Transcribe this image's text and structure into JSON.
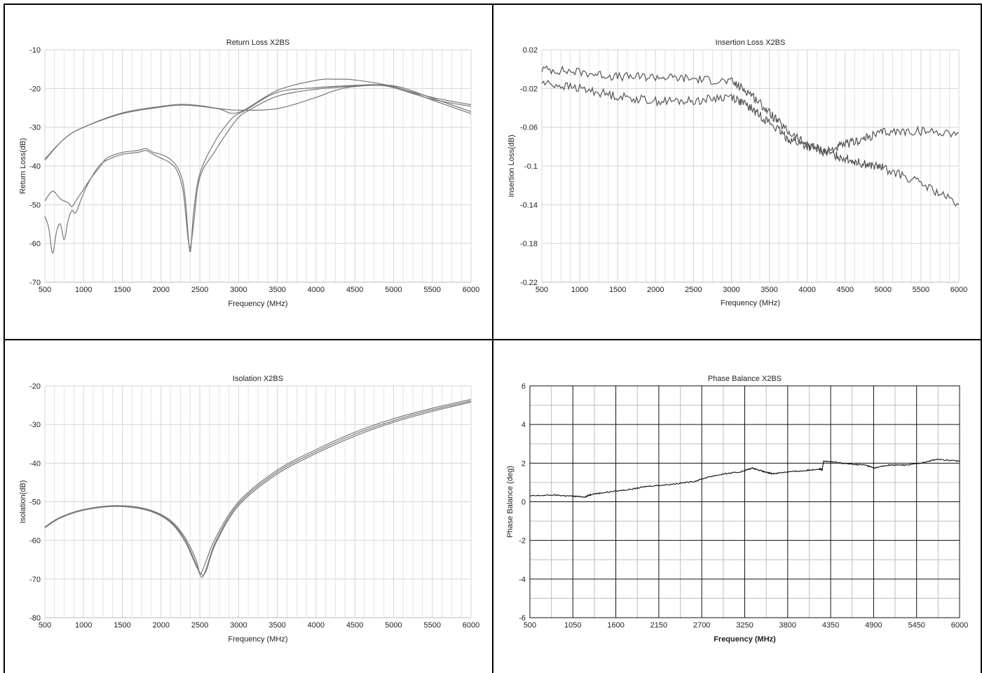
{
  "chart_data": [
    {
      "type": "line",
      "title": "Return Loss X2BS",
      "xlabel": "Frequency (MHz)",
      "ylabel": "Return Loss(dB)",
      "xlim": [
        500,
        6000
      ],
      "ylim": [
        -70,
        -10
      ],
      "x_ticks": [
        500,
        1000,
        1500,
        2000,
        2500,
        3000,
        3500,
        4000,
        4500,
        5000,
        5500,
        6000
      ],
      "y_ticks": [
        -10,
        -20,
        -30,
        -40,
        -50,
        -60,
        -70
      ],
      "grid": true,
      "line_color": "#777777",
      "series": [
        {
          "x": [
            500,
            750,
            1000,
            1500,
            2000,
            2250,
            2500,
            2750,
            3000,
            3500,
            4000,
            4250,
            4500,
            5000,
            5500,
            6000
          ],
          "y": [
            -38.5,
            -33,
            -30,
            -26.5,
            -24.8,
            -24.3,
            -24.6,
            -25.3,
            -26.2,
            -20.5,
            -17.9,
            -17.6,
            -17.8,
            -19.5,
            -23,
            -26.5
          ]
        },
        {
          "x": [
            500,
            750,
            1000,
            1500,
            2000,
            2250,
            2500,
            2750,
            3000,
            3500,
            4000,
            4250,
            4500,
            5000,
            5500,
            6000
          ],
          "y": [
            -38.2,
            -33,
            -30,
            -26.3,
            -24.6,
            -24.1,
            -24.4,
            -25.2,
            -25.6,
            -25.2,
            -22.3,
            -20.5,
            -19.5,
            -19.3,
            -22.5,
            -26
          ]
        },
        {
          "x": [
            500,
            600,
            700,
            800,
            850,
            900,
            1000,
            1100,
            1200,
            1300,
            1500,
            1700,
            1800,
            1900,
            2000,
            2100,
            2200,
            2280,
            2320,
            2350,
            2380,
            2420,
            2500,
            2700,
            2900,
            3000,
            3100,
            3500,
            4000,
            4500,
            4800,
            5000,
            5500,
            6000
          ],
          "y": [
            -49,
            -46.5,
            -48.5,
            -49.5,
            -50.5,
            -49,
            -46,
            -43,
            -40.5,
            -38,
            -36.5,
            -36,
            -35.5,
            -36.5,
            -37,
            -38,
            -40,
            -44,
            -50,
            -58,
            -62,
            -52,
            -42,
            -33.5,
            -28,
            -26.5,
            -25.5,
            -21,
            -19.8,
            -19.2,
            -19,
            -19.6,
            -22.3,
            -24.2
          ]
        },
        {
          "x": [
            500,
            550,
            600,
            650,
            700,
            750,
            800,
            850,
            900,
            1000,
            1100,
            1200,
            1300,
            1500,
            1700,
            1800,
            1900,
            2000,
            2100,
            2200,
            2280,
            2320,
            2350,
            2380,
            2420,
            2500,
            2700,
            2900,
            3000,
            3100,
            3500,
            4000,
            4500,
            4800,
            5000,
            5500,
            6000
          ],
          "y": [
            -53,
            -56,
            -62.5,
            -57,
            -55,
            -59,
            -54,
            -51.5,
            -52,
            -47,
            -43,
            -40,
            -38.5,
            -37,
            -36.5,
            -36,
            -37,
            -38,
            -39,
            -41,
            -46,
            -53,
            -59,
            -61,
            -55,
            -43,
            -36,
            -30,
            -27.5,
            -26,
            -22,
            -20.2,
            -19.4,
            -19.2,
            -19.8,
            -22.8,
            -24.6
          ]
        }
      ]
    },
    {
      "type": "line",
      "title": "Insertion Loss X2BS",
      "xlabel": "Frequency (MHz)",
      "ylabel": "Insertion Loss(dB)",
      "xlim": [
        500,
        6000
      ],
      "ylim": [
        -0.22,
        0.02
      ],
      "x_ticks": [
        500,
        1000,
        1500,
        2000,
        2500,
        3000,
        3500,
        4000,
        4500,
        5000,
        5500,
        6000
      ],
      "y_ticks": [
        0.02,
        -0.02,
        -0.06,
        -0.1,
        -0.14,
        -0.18,
        -0.22
      ],
      "grid": true,
      "line_color": "#555555",
      "series": [
        {
          "x": [
            500,
            1000,
            1500,
            2000,
            2500,
            3000,
            3250,
            3500,
            3750,
            4000,
            4250,
            4500,
            4750,
            5000,
            5500,
            6000
          ],
          "y": [
            0.0,
            -0.003,
            -0.008,
            -0.008,
            -0.01,
            -0.013,
            -0.025,
            -0.045,
            -0.065,
            -0.078,
            -0.085,
            -0.078,
            -0.072,
            -0.065,
            -0.064,
            -0.066
          ]
        },
        {
          "x": [
            500,
            1000,
            1500,
            2000,
            2500,
            3000,
            3250,
            3500,
            3750,
            4000,
            4250,
            4500,
            4750,
            5000,
            5500,
            6000
          ],
          "y": [
            -0.014,
            -0.02,
            -0.028,
            -0.033,
            -0.033,
            -0.028,
            -0.04,
            -0.055,
            -0.072,
            -0.08,
            -0.086,
            -0.092,
            -0.098,
            -0.102,
            -0.118,
            -0.14
          ]
        }
      ]
    },
    {
      "type": "line",
      "title": "Isolation X2BS",
      "xlabel": "Frequency (MHz)",
      "ylabel": "Isolation(dB)",
      "xlim": [
        500,
        6000
      ],
      "ylim": [
        -80,
        -20
      ],
      "x_ticks": [
        500,
        1000,
        1500,
        2000,
        2500,
        3000,
        3500,
        4000,
        4500,
        5000,
        5500,
        6000
      ],
      "y_ticks": [
        -20,
        -30,
        -40,
        -50,
        -60,
        -70,
        -80
      ],
      "grid": true,
      "line_color": "#777777",
      "series": [
        {
          "x": [
            500,
            700,
            1000,
            1400,
            1800,
            2100,
            2300,
            2450,
            2500,
            2550,
            2700,
            3000,
            3500,
            4000,
            4500,
            5000,
            5500,
            6000
          ],
          "y": [
            -56.5,
            -54,
            -52,
            -51,
            -51.8,
            -54.5,
            -59,
            -65,
            -68.5,
            -67,
            -59.5,
            -50,
            -41.8,
            -36.5,
            -32,
            -28.5,
            -25.8,
            -23.5
          ]
        },
        {
          "x": [
            500,
            700,
            1000,
            1400,
            1800,
            2100,
            2300,
            2450,
            2520,
            2580,
            2700,
            3000,
            3500,
            4000,
            4500,
            5000,
            5500,
            6000
          ],
          "y": [
            -56.6,
            -54.1,
            -52.1,
            -51.1,
            -52,
            -54.8,
            -59.5,
            -66,
            -69.5,
            -67.5,
            -60.5,
            -50.5,
            -42.3,
            -37,
            -32.5,
            -29,
            -26.2,
            -23.9
          ]
        },
        {
          "x": [
            500,
            700,
            1000,
            1400,
            1800,
            2100,
            2300,
            2450,
            2520,
            2580,
            2700,
            3000,
            3500,
            4000,
            4500,
            5000,
            5500,
            6000
          ],
          "y": [
            -56.7,
            -54.2,
            -52.2,
            -51.2,
            -52.1,
            -55,
            -60,
            -66.5,
            -68.8,
            -68,
            -61,
            -51,
            -42.8,
            -37.5,
            -33,
            -29.4,
            -26.6,
            -24.2
          ]
        }
      ]
    },
    {
      "type": "line",
      "title": "Phase Balance X2BS",
      "xlabel": "Frequency (MHz)",
      "ylabel": "Phase Balance (deg)",
      "xlim": [
        500,
        6000
      ],
      "ylim": [
        -6,
        6
      ],
      "x_ticks": [
        500,
        1050,
        1600,
        2150,
        2700,
        3250,
        3800,
        4350,
        4900,
        5450,
        6000
      ],
      "y_ticks": [
        6,
        4,
        2,
        0,
        -2,
        -4,
        -6
      ],
      "grid": true,
      "line_color": "#111111",
      "series": [
        {
          "x": [
            500,
            800,
            1000,
            1200,
            1300,
            1500,
            1800,
            2000,
            2300,
            2600,
            2800,
            3000,
            3200,
            3350,
            3500,
            3600,
            3800,
            4000,
            4200,
            4240,
            4260,
            4400,
            4600,
            4800,
            4900,
            5100,
            5300,
            5500,
            5700,
            6000
          ],
          "y": [
            0.3,
            0.35,
            0.3,
            0.25,
            0.4,
            0.5,
            0.65,
            0.8,
            0.9,
            1.05,
            1.3,
            1.45,
            1.55,
            1.75,
            1.55,
            1.45,
            1.55,
            1.6,
            1.7,
            1.65,
            2.1,
            2.05,
            1.95,
            1.9,
            1.75,
            1.9,
            1.9,
            2.0,
            2.2,
            2.1
          ]
        }
      ]
    }
  ]
}
